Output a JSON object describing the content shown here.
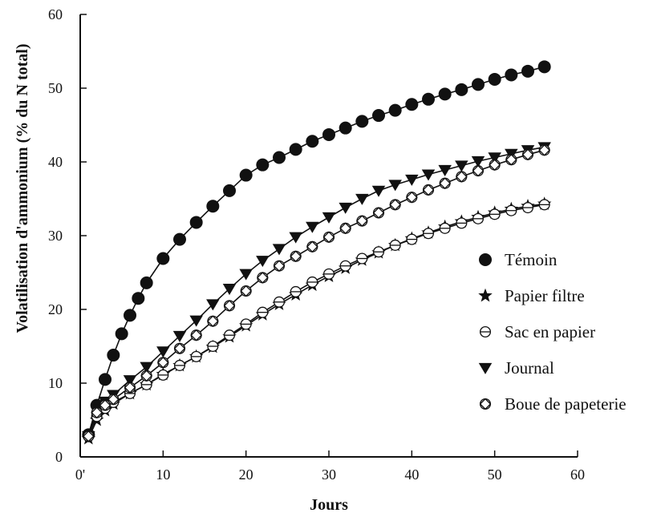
{
  "chart_data": {
    "type": "line",
    "title": "",
    "xlabel": "Jours",
    "ylabel": "Volatilisation d'ammonium (% du N total)",
    "xlim": [
      0,
      60
    ],
    "ylim": [
      0,
      60
    ],
    "xticks": [
      0,
      10,
      20,
      30,
      40,
      50,
      60
    ],
    "yticks": [
      0,
      10,
      20,
      30,
      40,
      50,
      60
    ],
    "x_tick_labels": [
      "0'",
      "10",
      "20",
      "30",
      "40",
      "50",
      "60"
    ],
    "y_tick_labels": [
      "0",
      "10",
      "20",
      "30",
      "40",
      "50",
      "60"
    ],
    "grid": false,
    "legend_position": "right",
    "series": [
      {
        "name": "Témoin",
        "marker": "filled-circle",
        "color": "#111111",
        "x": [
          1,
          2,
          3,
          4,
          5,
          6,
          7,
          8,
          10,
          12,
          14,
          16,
          18,
          20,
          22,
          24,
          26,
          28,
          30,
          32,
          34,
          36,
          38,
          40,
          42,
          44,
          46,
          48,
          50,
          52,
          54,
          56
        ],
        "y": [
          3.0,
          7.0,
          10.5,
          13.8,
          16.7,
          19.2,
          21.5,
          23.6,
          26.9,
          29.5,
          31.8,
          34.0,
          36.1,
          38.2,
          39.6,
          40.6,
          41.7,
          42.8,
          43.7,
          44.6,
          45.5,
          46.3,
          47.0,
          47.8,
          48.5,
          49.2,
          49.8,
          50.5,
          51.2,
          51.8,
          52.3,
          52.9
        ]
      },
      {
        "name": "Papier filtre",
        "marker": "star",
        "color": "#111111",
        "x": [
          1,
          2,
          3,
          4,
          6,
          8,
          10,
          12,
          14,
          16,
          18,
          20,
          22,
          24,
          26,
          28,
          30,
          32,
          34,
          36,
          38,
          40,
          42,
          44,
          46,
          48,
          50,
          52,
          54,
          56
        ],
        "y": [
          2.5,
          5.0,
          6.3,
          7.2,
          8.6,
          9.8,
          11.2,
          12.4,
          13.6,
          14.9,
          16.3,
          17.8,
          19.3,
          20.7,
          22.0,
          23.3,
          24.5,
          25.6,
          26.7,
          27.7,
          28.7,
          29.6,
          30.4,
          31.2,
          31.9,
          32.5,
          33.1,
          33.6,
          34.0,
          34.3
        ]
      },
      {
        "name": "Sac en papier",
        "marker": "circle-minus",
        "color": "#111111",
        "x": [
          1,
          2,
          3,
          4,
          6,
          8,
          10,
          12,
          14,
          16,
          18,
          20,
          22,
          24,
          26,
          28,
          30,
          32,
          34,
          36,
          38,
          40,
          42,
          44,
          46,
          48,
          50,
          52,
          54,
          56
        ],
        "y": [
          2.8,
          5.5,
          6.6,
          7.4,
          8.6,
          9.8,
          11.1,
          12.4,
          13.6,
          15.0,
          16.5,
          18.0,
          19.6,
          21.0,
          22.4,
          23.7,
          24.8,
          25.9,
          26.9,
          27.8,
          28.7,
          29.5,
          30.3,
          31.0,
          31.7,
          32.3,
          32.9,
          33.4,
          33.8,
          34.2
        ]
      },
      {
        "name": "Journal",
        "marker": "down-triangle",
        "color": "#111111",
        "x": [
          1,
          2,
          3,
          4,
          6,
          8,
          10,
          12,
          14,
          16,
          18,
          20,
          22,
          24,
          26,
          28,
          30,
          32,
          34,
          36,
          38,
          40,
          42,
          44,
          46,
          48,
          50,
          52,
          54,
          56
        ],
        "y": [
          2.8,
          6.4,
          7.5,
          8.4,
          10.4,
          12.2,
          14.3,
          16.4,
          18.5,
          20.7,
          22.8,
          24.8,
          26.6,
          28.2,
          29.8,
          31.2,
          32.5,
          33.8,
          35.0,
          36.1,
          36.9,
          37.6,
          38.3,
          38.9,
          39.5,
          40.1,
          40.6,
          41.1,
          41.6,
          42.0
        ]
      },
      {
        "name": "Boue de papeterie",
        "marker": "diamond-circle",
        "color": "#111111",
        "x": [
          1,
          2,
          3,
          4,
          6,
          8,
          10,
          12,
          14,
          16,
          18,
          20,
          22,
          24,
          26,
          28,
          30,
          32,
          34,
          36,
          38,
          40,
          42,
          44,
          46,
          48,
          50,
          52,
          54,
          56
        ],
        "y": [
          2.8,
          6.0,
          7.0,
          7.8,
          9.4,
          11.0,
          12.8,
          14.7,
          16.5,
          18.4,
          20.5,
          22.5,
          24.3,
          25.9,
          27.2,
          28.5,
          29.8,
          31.0,
          32.0,
          33.1,
          34.2,
          35.2,
          36.2,
          37.1,
          38.0,
          38.8,
          39.6,
          40.3,
          41.0,
          41.6
        ]
      }
    ]
  }
}
